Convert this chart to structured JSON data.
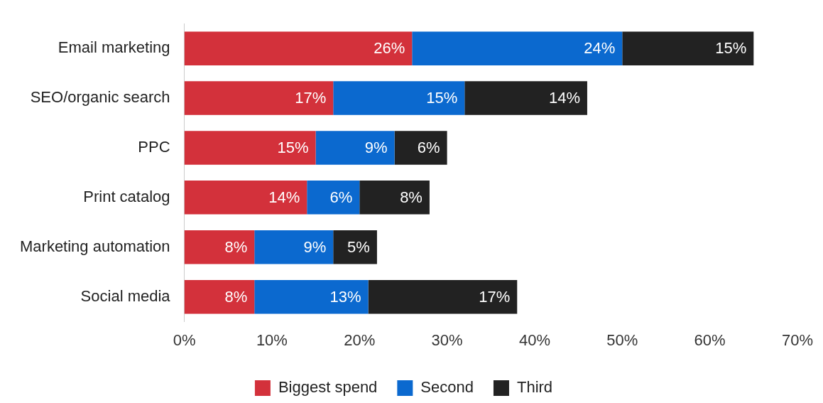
{
  "chart_data": {
    "type": "bar",
    "orientation": "horizontal",
    "stacked": true,
    "categories": [
      "Email marketing",
      "SEO/organic search",
      "PPC",
      "Print catalog",
      "Marketing automation",
      "Social media"
    ],
    "series": [
      {
        "name": "Biggest spend",
        "color": "#d3313b",
        "values": [
          26,
          17,
          15,
          14,
          8,
          8
        ],
        "value_labels": [
          "26%",
          "17%",
          "15%",
          "14%",
          "8%",
          "8%"
        ]
      },
      {
        "name": "Second",
        "color": "#0b69cf",
        "values": [
          24,
          15,
          9,
          6,
          9,
          13
        ],
        "value_labels": [
          "24%",
          "15%",
          "9%",
          "6%",
          "9%",
          "13%"
        ]
      },
      {
        "name": "Third",
        "color": "#222222",
        "values": [
          15,
          14,
          6,
          8,
          5,
          17
        ],
        "value_labels": [
          "15%",
          "14%",
          "6%",
          "8%",
          "5%",
          "17%"
        ]
      }
    ],
    "xlim": [
      0,
      70
    ],
    "xticks": [
      {
        "value": 0,
        "label": "0%"
      },
      {
        "value": 10,
        "label": "10%"
      },
      {
        "value": 20,
        "label": "20%"
      },
      {
        "value": 30,
        "label": "30%"
      },
      {
        "value": 40,
        "label": "40%"
      },
      {
        "value": 50,
        "label": "50%"
      },
      {
        "value": 60,
        "label": "60%"
      },
      {
        "value": 70,
        "label": "70%"
      }
    ],
    "grid": false,
    "legend": "bottom"
  }
}
